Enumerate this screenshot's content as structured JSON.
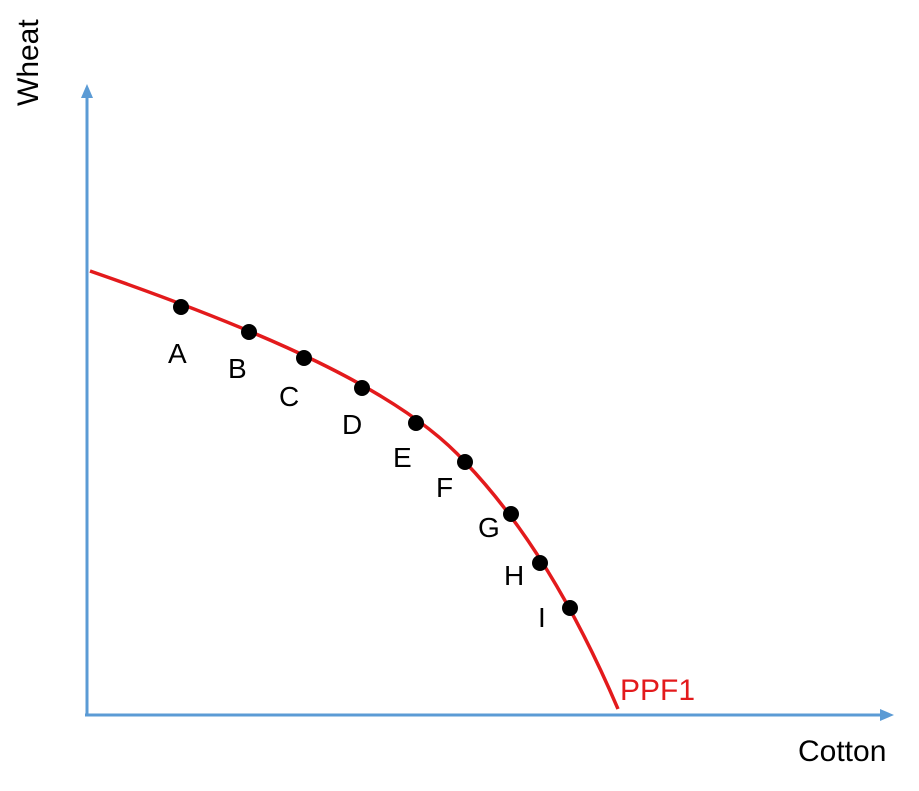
{
  "axes": {
    "y_label": "Wheat",
    "x_label": "Cotton"
  },
  "curve": {
    "label": "PPF1",
    "color": "#e31a1c"
  },
  "axis_color": "#5b9bd5",
  "points": [
    {
      "label": "A"
    },
    {
      "label": "B"
    },
    {
      "label": "C"
    },
    {
      "label": "D"
    },
    {
      "label": "E"
    },
    {
      "label": "F"
    },
    {
      "label": "G"
    },
    {
      "label": "H"
    },
    {
      "label": "I"
    }
  ]
}
